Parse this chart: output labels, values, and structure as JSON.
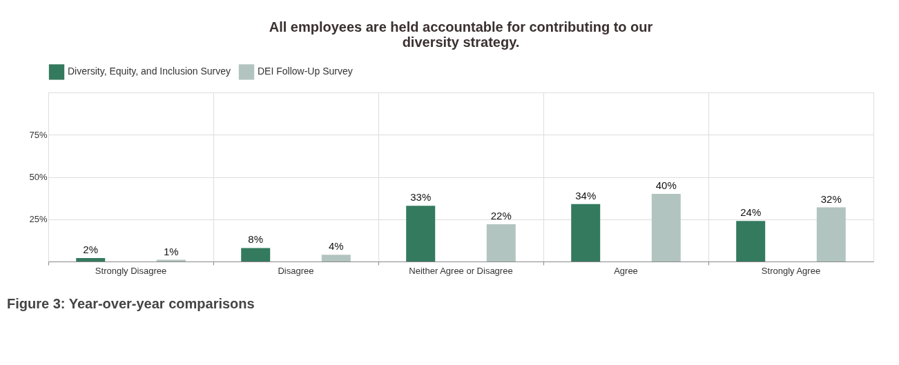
{
  "chart_data": {
    "type": "bar",
    "title": "All employees are held accountable for contributing to our diversity strategy.",
    "categories": [
      "Strongly Disagree",
      "Disagree",
      "Neither Agree or Disagree",
      "Agree",
      "Strongly Agree"
    ],
    "series": [
      {
        "name": "Diversity, Equity, and Inclusion Survey",
        "color": "#347a5f",
        "values": [
          2,
          8,
          33,
          34,
          24
        ],
        "value_labels": [
          "2%",
          "8%",
          "33%",
          "34%",
          "24%"
        ]
      },
      {
        "name": "DEI Follow-Up Survey",
        "color": "#b2c4c0",
        "values": [
          1,
          4,
          22,
          40,
          32
        ],
        "value_labels": [
          "1%",
          "4%",
          "22%",
          "40%",
          "32%"
        ]
      }
    ],
    "ylim": [
      0,
      100
    ],
    "yticks": [
      {
        "value": 0,
        "label": null
      },
      {
        "value": 25,
        "label": "25%"
      },
      {
        "value": 50,
        "label": "50%"
      },
      {
        "value": 75,
        "label": "75%"
      },
      {
        "value": 100,
        "label": null
      }
    ],
    "grid": true,
    "legend": "top",
    "annotations": [
      "Figure 3:  Year-over-year comparisons"
    ]
  }
}
